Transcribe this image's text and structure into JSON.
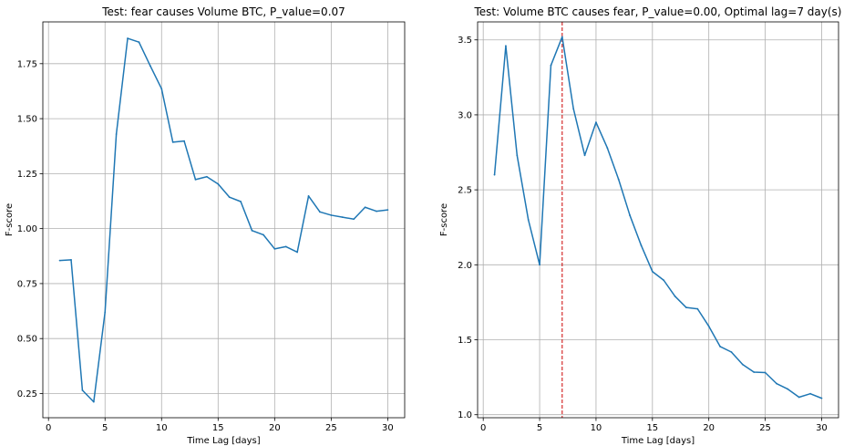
{
  "chart_data": [
    {
      "type": "line",
      "title": "Test: fear causes Volume BTC, P_value=0.07",
      "xlabel": "Time Lag [days]",
      "ylabel": "F-score",
      "xlim": [
        -0.5,
        31.5
      ],
      "ylim": [
        0.14,
        1.94
      ],
      "xticks": [
        0,
        5,
        10,
        15,
        20,
        25,
        30
      ],
      "yticks": [
        0.25,
        0.5,
        0.75,
        1.0,
        1.25,
        1.5,
        1.75
      ],
      "ytick_labels": [
        "0.25",
        "0.50",
        "0.75",
        "1.00",
        "1.25",
        "1.50",
        "1.75"
      ],
      "grid": true,
      "line_color": "#1f77b4",
      "series": [
        {
          "x": [
            1,
            2,
            3,
            4,
            5,
            6,
            7,
            8,
            9,
            10,
            11,
            12,
            13,
            14,
            15,
            16,
            17,
            18,
            19,
            20,
            21,
            22,
            23,
            24,
            25,
            26,
            27,
            28,
            29,
            30
          ],
          "values": [
            0.855,
            0.858,
            0.265,
            0.212,
            0.62,
            1.43,
            1.865,
            1.848,
            1.74,
            1.636,
            1.393,
            1.398,
            1.223,
            1.236,
            1.203,
            1.143,
            1.123,
            0.991,
            0.972,
            0.908,
            0.918,
            0.893,
            1.148,
            1.076,
            1.061,
            1.052,
            1.043,
            1.097,
            1.079,
            1.085
          ]
        }
      ]
    },
    {
      "type": "line",
      "title": "Test: Volume BTC causes fear, P_value=0.00, Optimal lag=7 day(s)",
      "xlabel": "Time Lag [days]",
      "ylabel": "F-score",
      "xlim": [
        -0.5,
        31.5
      ],
      "ylim": [
        0.98,
        3.62
      ],
      "xticks": [
        0,
        5,
        10,
        15,
        20,
        25,
        30
      ],
      "yticks": [
        1.0,
        1.5,
        2.0,
        2.5,
        3.0,
        3.5
      ],
      "ytick_labels": [
        "1.0",
        "1.5",
        "2.0",
        "2.5",
        "3.0",
        "3.5"
      ],
      "grid": true,
      "line_color": "#1f77b4",
      "vline": {
        "x": 7,
        "color": "#cc0000",
        "style": "dashed"
      },
      "series": [
        {
          "x": [
            1,
            2,
            3,
            4,
            5,
            6,
            7,
            8,
            9,
            10,
            11,
            12,
            13,
            14,
            15,
            16,
            17,
            18,
            19,
            20,
            21,
            22,
            23,
            24,
            25,
            26,
            27,
            28,
            29,
            30
          ],
          "values": [
            2.6,
            3.46,
            2.73,
            2.3,
            2.0,
            3.33,
            3.52,
            3.04,
            2.73,
            2.95,
            2.78,
            2.57,
            2.33,
            2.13,
            1.955,
            1.897,
            1.79,
            1.715,
            1.706,
            1.59,
            1.455,
            1.418,
            1.335,
            1.284,
            1.281,
            1.208,
            1.171,
            1.117,
            1.14,
            1.11
          ]
        }
      ]
    }
  ]
}
